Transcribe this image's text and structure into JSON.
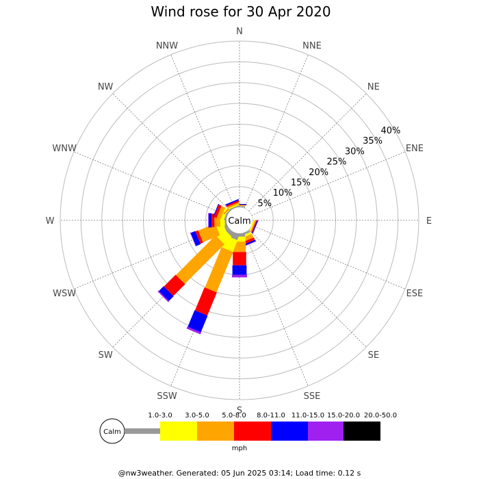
{
  "title": "Wind rose for 30 Apr 2020",
  "footer": "@nw3weather. Generated: 05 Jun 2025 03:14; Load time: 0.12 s",
  "calm_label": "Calm",
  "unit_label": "mph",
  "chart_data": {
    "type": "wind-rose",
    "title": "Wind rose for 30 Apr 2020",
    "directions": [
      "N",
      "NNE",
      "NE",
      "ENE",
      "E",
      "ESE",
      "SE",
      "SSE",
      "S",
      "SSW",
      "SW",
      "WSW",
      "W",
      "WNW",
      "NW",
      "NNW"
    ],
    "radial_ticks": [
      "5%",
      "10%",
      "15%",
      "20%",
      "25%",
      "30%",
      "35%",
      "40%"
    ],
    "radial_values": [
      5,
      10,
      15,
      20,
      25,
      30,
      35,
      40
    ],
    "rmax": 40,
    "speed_bins": [
      {
        "label": "",
        "color": "#999999"
      },
      {
        "label": "1.0-3.0",
        "color": "#ffff00"
      },
      {
        "label": "3.0-5.0",
        "color": "#ffa500"
      },
      {
        "label": "5.0-8.0",
        "color": "#ff0000"
      },
      {
        "label": "8.0-11.0",
        "color": "#0000ff"
      },
      {
        "label": "11.0-15.0",
        "color": "#a020f0"
      },
      {
        "label": "15.0-20.0",
        "color": "#000000"
      },
      {
        "label": "20.0-50.0",
        "color": "#000000"
      }
    ],
    "legend_labels": [
      "1.0-3.0",
      "3.0-5.0",
      "5.0-8.0",
      "8.0-11.0",
      "11.0-15.0",
      "15.0-20.0",
      "20.0-50.0"
    ],
    "legend_colors": [
      "#999999",
      "#ffff00",
      "#ffa500",
      "#ff0000",
      "#0000ff",
      "#a020f0",
      "#000000"
    ],
    "series": [
      {
        "direction": "N",
        "cumulative": [
          0.3,
          0.4,
          0.5,
          0.6,
          0.8,
          0.8,
          0.8
        ]
      },
      {
        "direction": "NNE",
        "cumulative": [
          0,
          0,
          0,
          0,
          0,
          0,
          0
        ]
      },
      {
        "direction": "NE",
        "cumulative": [
          0,
          0,
          0,
          0,
          0,
          0,
          0
        ]
      },
      {
        "direction": "ENE",
        "cumulative": [
          0,
          0,
          0,
          0,
          0,
          0,
          0
        ]
      },
      {
        "direction": "E",
        "cumulative": [
          0,
          0,
          0,
          0,
          0,
          0,
          0
        ]
      },
      {
        "direction": "ESE",
        "cumulative": [
          0,
          0.3,
          0.6,
          0.8,
          1.0,
          1.1,
          1.1
        ]
      },
      {
        "direction": "SE",
        "cumulative": [
          0,
          0,
          0,
          0,
          0,
          0,
          0
        ]
      },
      {
        "direction": "SSE",
        "cumulative": [
          0.5,
          1.0,
          2.0,
          2.6,
          3.0,
          3.1,
          3.1
        ]
      },
      {
        "direction": "S",
        "cumulative": [
          0.8,
          2.0,
          4.5,
          7.7,
          10.0,
          10.6,
          10.6
        ]
      },
      {
        "direction": "SSW",
        "cumulative": [
          1.5,
          4.5,
          15.0,
          21.0,
          25.3,
          25.8,
          25.8
        ]
      },
      {
        "direction": "SW",
        "cumulative": [
          1.0,
          3.5,
          17.0,
          21.0,
          22.6,
          22.9,
          22.9
        ]
      },
      {
        "direction": "WSW",
        "cumulative": [
          0.8,
          2.6,
          7.0,
          7.7,
          8.9,
          9.0,
          9.0
        ]
      },
      {
        "direction": "W",
        "cumulative": [
          0.4,
          1.5,
          2.9,
          3.6,
          4.3,
          4.4,
          4.4
        ]
      },
      {
        "direction": "WNW",
        "cumulative": [
          0.4,
          1.2,
          2.2,
          2.9,
          3.1,
          3.1,
          3.1
        ]
      },
      {
        "direction": "NW",
        "cumulative": [
          0.3,
          0.5,
          0.6,
          0.7,
          0.7,
          0.7,
          0.7
        ]
      },
      {
        "direction": "NNW",
        "cumulative": [
          0.3,
          0.6,
          1.0,
          1.4,
          1.7,
          1.7,
          1.7
        ]
      }
    ]
  }
}
